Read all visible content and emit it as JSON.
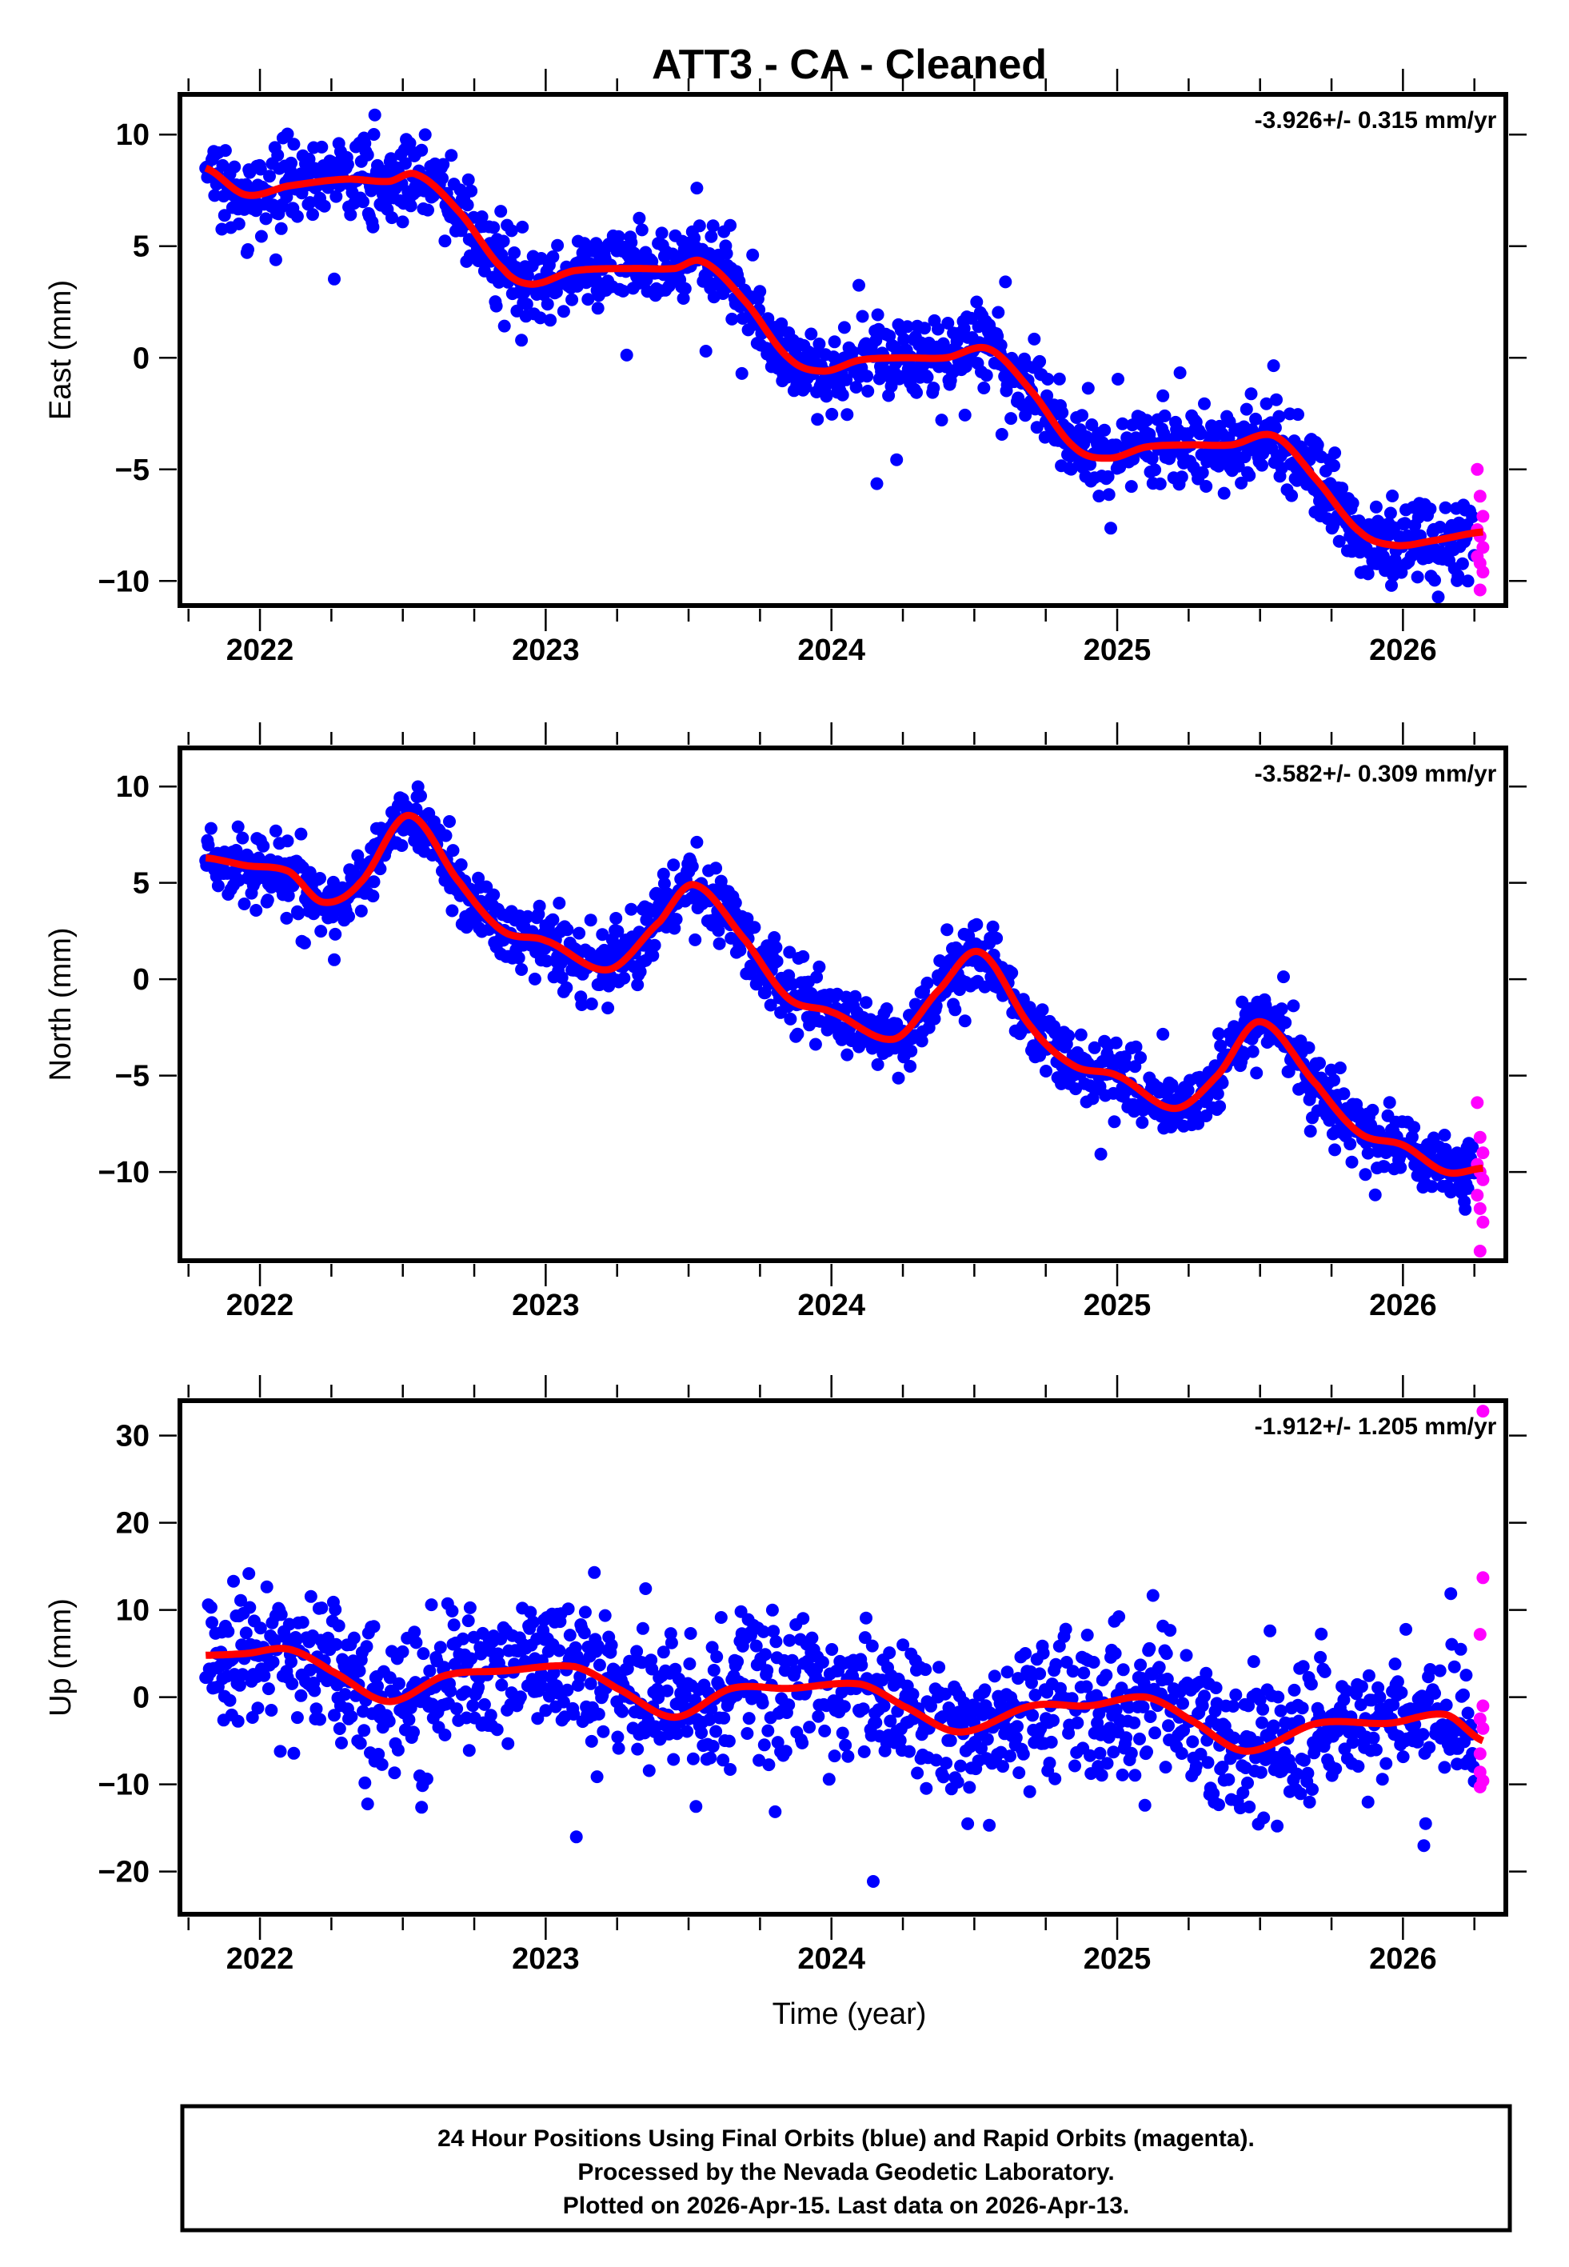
{
  "title": "ATT3  - CA - Cleaned",
  "xlabel": "Time (year)",
  "footer": {
    "lines": [
      "24 Hour Positions Using Final Orbits (blue) and Rapid Orbits (magenta).",
      "Processed by the Nevada Geodetic Laboratory.",
      "Plotted on 2026-Apr-15. Last data on 2026-Apr-13."
    ]
  },
  "colors": {
    "final_orbits": "#0000ff",
    "rapid_orbits": "#ff00ff",
    "fit": "#ff0000",
    "frame": "#000000"
  },
  "chart_data": [
    {
      "type": "scatter",
      "component": "East",
      "ylabel": "East (mm)",
      "rate_label": "-3.926+/- 0.315 mm/yr",
      "xlim": [
        2021.72,
        2026.36
      ],
      "ylim": [
        -11.1,
        11.8
      ],
      "xticks": [
        "2022",
        "2023",
        "2024",
        "2025",
        "2026"
      ],
      "yticks": [
        10,
        5,
        0,
        -5,
        -10
      ],
      "ytick_labels": [
        "10",
        "5",
        "0",
        "−5",
        "−10"
      ],
      "noise_mm": 1.2,
      "fit_curve": {
        "x": [
          2021.81,
          2021.95,
          2022.1,
          2022.3,
          2022.45,
          2022.55,
          2022.7,
          2022.85,
          2022.95,
          2023.1,
          2023.3,
          2023.45,
          2023.55,
          2023.7,
          2023.85,
          2023.97,
          2024.1,
          2024.25,
          2024.4,
          2024.55,
          2024.7,
          2024.85,
          2024.97,
          2025.1,
          2025.25,
          2025.4,
          2025.55,
          2025.7,
          2025.85,
          2025.97,
          2026.1,
          2026.28
        ],
        "y": [
          8.5,
          7.3,
          7.7,
          8.0,
          7.9,
          8.2,
          6.5,
          4.0,
          3.3,
          3.9,
          4.0,
          4.0,
          4.3,
          2.5,
          0.0,
          -0.6,
          -0.1,
          0.0,
          0.0,
          0.4,
          -1.5,
          -4.0,
          -4.5,
          -4.0,
          -3.9,
          -3.9,
          -3.5,
          -5.5,
          -7.8,
          -8.4,
          -8.2,
          -7.8
        ]
      },
      "rapid_points": {
        "x": [
          2026.26,
          2026.27,
          2026.28,
          2026.26,
          2026.27,
          2026.28,
          2026.26,
          2026.27,
          2026.28,
          2026.27
        ],
        "y": [
          -5.0,
          -6.2,
          -7.1,
          -7.7,
          -8.0,
          -8.5,
          -8.9,
          -9.2,
          -9.6,
          -10.4
        ]
      }
    },
    {
      "type": "scatter",
      "component": "North",
      "ylabel": "North (mm)",
      "rate_label": "-3.582+/- 0.309 mm/yr",
      "xlim": [
        2021.72,
        2026.36
      ],
      "ylim": [
        -14.6,
        12.0
      ],
      "xticks": [
        "2022",
        "2023",
        "2024",
        "2025",
        "2026"
      ],
      "yticks": [
        10,
        5,
        0,
        -5,
        -10
      ],
      "ytick_labels": [
        "10",
        "5",
        "0",
        "−5",
        "−10"
      ],
      "noise_mm": 1.2,
      "fit_curve": {
        "x": [
          2021.81,
          2021.95,
          2022.1,
          2022.22,
          2022.35,
          2022.52,
          2022.7,
          2022.85,
          2023.0,
          2023.22,
          2023.4,
          2023.52,
          2023.7,
          2023.85,
          2024.0,
          2024.22,
          2024.38,
          2024.52,
          2024.7,
          2024.85,
          2025.0,
          2025.2,
          2025.35,
          2025.5,
          2025.7,
          2025.85,
          2026.0,
          2026.15,
          2026.28
        ],
        "y": [
          6.3,
          5.9,
          5.6,
          4.0,
          5.0,
          8.5,
          5.0,
          2.5,
          2.0,
          0.5,
          3.0,
          4.9,
          2.0,
          -1.0,
          -1.7,
          -3.1,
          -0.5,
          1.4,
          -2.5,
          -4.5,
          -5.0,
          -6.7,
          -5.0,
          -2.2,
          -5.5,
          -8.0,
          -8.6,
          -10.0,
          -9.8
        ]
      },
      "rapid_points": {
        "x": [
          2026.26,
          2026.27,
          2026.28,
          2026.26,
          2026.27,
          2026.28,
          2026.26,
          2026.27,
          2026.28,
          2026.27
        ],
        "y": [
          -6.4,
          -8.2,
          -9.0,
          -9.6,
          -10.0,
          -10.4,
          -11.2,
          -11.9,
          -12.6,
          -14.1
        ]
      }
    },
    {
      "type": "scatter",
      "component": "Up",
      "ylabel": "Up (mm)",
      "rate_label": "-1.912+/- 1.205 mm/yr",
      "xlim": [
        2021.72,
        2026.36
      ],
      "ylim": [
        -24.9,
        34.0
      ],
      "xticks": [
        "2022",
        "2023",
        "2024",
        "2025",
        "2026"
      ],
      "yticks": [
        30,
        20,
        10,
        0,
        -10,
        -20
      ],
      "ytick_labels": [
        "30",
        "20",
        "10",
        "0",
        "−10",
        "−20"
      ],
      "noise_mm": 5.5,
      "fit_curve": {
        "x": [
          2021.81,
          2021.95,
          2022.1,
          2022.25,
          2022.45,
          2022.65,
          2022.85,
          2023.1,
          2023.25,
          2023.45,
          2023.65,
          2023.85,
          2024.1,
          2024.25,
          2024.45,
          2024.7,
          2024.9,
          2025.1,
          2025.25,
          2025.45,
          2025.7,
          2025.95,
          2026.15,
          2026.28
        ],
        "y": [
          4.8,
          5.0,
          5.5,
          3.0,
          -0.5,
          2.5,
          3.0,
          3.5,
          1.0,
          -2.3,
          1.0,
          1.0,
          1.5,
          -1.0,
          -4.0,
          -1.0,
          -1.0,
          0.0,
          -2.5,
          -6.2,
          -3.0,
          -3.0,
          -2.0,
          -5.0
        ]
      },
      "rapid_points": {
        "x": [
          2026.28,
          2026.28,
          2026.27,
          2026.28,
          2026.27,
          2026.28,
          2026.27,
          2026.27,
          2026.28,
          2026.27
        ],
        "y": [
          32.8,
          13.7,
          7.2,
          -1.0,
          -2.5,
          -3.6,
          -6.5,
          -8.6,
          -9.6,
          -10.3
        ]
      }
    }
  ]
}
